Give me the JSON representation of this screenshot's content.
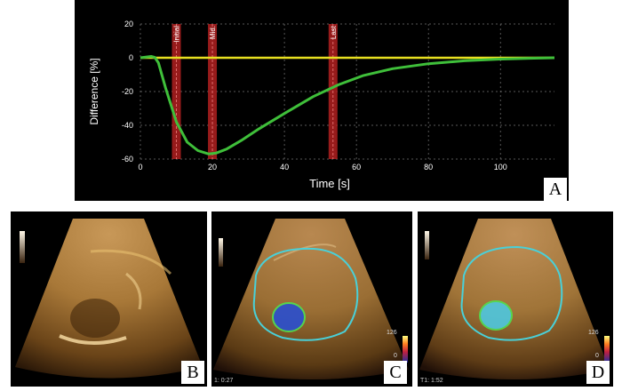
{
  "panel_a": {
    "letter": "A",
    "chart_data": {
      "type": "line",
      "xlabel": "Time [s]",
      "ylabel": "Difference [%]",
      "xlim": [
        0,
        115
      ],
      "ylim": [
        -60,
        20
      ],
      "xticks": [
        "0",
        "20",
        "40",
        "60",
        "80",
        "100"
      ],
      "yticks": [
        "20",
        "0",
        "-20",
        "-40",
        "-60"
      ],
      "grid": true,
      "markers": [
        {
          "label": "Initial",
          "x": 10
        },
        {
          "label": "Mid.",
          "x": 20
        },
        {
          "label": "Last",
          "x": 53.5
        }
      ],
      "series": [
        {
          "color": "#e8e020",
          "x": [
            0,
            115
          ],
          "y": [
            0,
            0
          ]
        },
        {
          "color": "#3fbf3a",
          "x": [
            0,
            2,
            3,
            4,
            5,
            7,
            10,
            13,
            16,
            19,
            21,
            24,
            28,
            33,
            40,
            48,
            55,
            62,
            70,
            80,
            90,
            100,
            108,
            115
          ],
          "y": [
            0,
            0.5,
            0.8,
            0.2,
            -3,
            -18,
            -38,
            -50,
            -55,
            -57,
            -56.5,
            -54,
            -49,
            -42,
            -33,
            -23,
            -16,
            -10.5,
            -6.5,
            -3.5,
            -1.8,
            -0.8,
            -0.3,
            0
          ]
        }
      ]
    }
  },
  "panel_b": {
    "letter": "B"
  },
  "panel_c": {
    "letter": "C",
    "colorbar_max": "126",
    "colorbar_min": "0",
    "timestamp": "1: 0:27"
  },
  "panel_d": {
    "letter": "D",
    "colorbar_max": "126",
    "colorbar_min": "0",
    "timestamp": "T1: 1:52"
  },
  "colors": {
    "roi_outline": "#49d0d8",
    "lesion_fill": "#2a4fd0",
    "lesion_fill_d": "#4ec8e0",
    "background_trace": "#e8e020",
    "tic": "#3fbf3a",
    "marker": "#b22020"
  }
}
